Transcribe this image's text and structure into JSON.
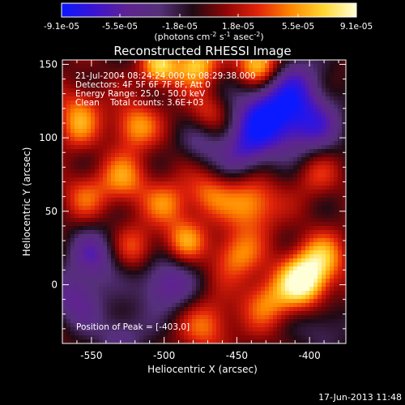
{
  "colorbar": {
    "ticks": [
      "-9.1e-05",
      "-5.5e-05",
      "-1.8e-05",
      "1.8e-05",
      "5.5e-05",
      "9.1e-05"
    ],
    "tick_values": [
      -9.1e-05,
      -5.5e-05,
      -1.8e-05,
      1.8e-05,
      5.5e-05,
      9.1e-05
    ],
    "range": [
      -9.1e-05,
      9.1e-05
    ],
    "unit": "(photons cm",
    "unit_sup1": "-2",
    "unit_mid": " s",
    "unit_sup2": "-1",
    "unit_end": " asec",
    "unit_sup3": "-2",
    "unit_close": ")",
    "colors": [
      "#0a19ff",
      "#3c14d2",
      "#5f2391",
      "#55307a",
      "#1e0a14",
      "#8c0505",
      "#e1230a",
      "#ff8700",
      "#ffd732",
      "#ffffd7"
    ]
  },
  "chart_data": {
    "type": "heatmap",
    "title": "Reconstructed RHESSI Image",
    "xlabel": "Heliocentric X (arcsec)",
    "ylabel": "Heliocentric Y (arcsec)",
    "xlim": [
      -570,
      -375
    ],
    "ylim": [
      -40,
      153
    ],
    "xticks": [
      -550,
      -500,
      -450,
      -400
    ],
    "yticks": [
      0,
      50,
      100,
      150
    ],
    "xtick_labels": [
      "-550",
      "-500",
      "-450",
      "-400"
    ],
    "ytick_labels": [
      "0",
      "50",
      "100",
      "150"
    ],
    "peak": [
      -403,
      0
    ],
    "annotations": {
      "time": "21-Jul-2004 08:24:24.000 to 08:29:38.000",
      "detectors": "Detectors: 4F 5F 6F 7F 8F, Att 0",
      "energy": "Energy Range: 25.0 - 50.0 keV",
      "clean": "Clean    Total counts: 3.6E+03",
      "peak_text": "Position of Peak = [-403,0]"
    },
    "blobs": [
      {
        "x": -405,
        "y": 2,
        "v": 9.1e-05,
        "s": 12
      },
      {
        "x": -392,
        "y": 18,
        "v": 5.5e-05,
        "s": 12
      },
      {
        "x": -440,
        "y": 55,
        "v": 6e-05,
        "s": 13
      },
      {
        "x": -450,
        "y": 20,
        "v": 5e-05,
        "s": 12
      },
      {
        "x": -430,
        "y": -12,
        "v": 4.8e-05,
        "s": 12
      },
      {
        "x": -470,
        "y": -28,
        "v": 4.5e-05,
        "s": 12
      },
      {
        "x": -485,
        "y": 30,
        "v": 5e-05,
        "s": 10
      },
      {
        "x": -470,
        "y": 62,
        "v": 4e-05,
        "s": 11
      },
      {
        "x": -498,
        "y": 55,
        "v": 4.5e-05,
        "s": 11
      },
      {
        "x": -520,
        "y": 25,
        "v": 4e-05,
        "s": 11
      },
      {
        "x": -528,
        "y": 72,
        "v": 5e-05,
        "s": 12
      },
      {
        "x": -555,
        "y": 60,
        "v": 3.5e-05,
        "s": 11
      },
      {
        "x": -520,
        "y": 108,
        "v": 5.5e-05,
        "s": 11
      },
      {
        "x": -558,
        "y": 120,
        "v": 3.8e-05,
        "s": 11
      },
      {
        "x": -560,
        "y": 105,
        "v": 3.2e-05,
        "s": 10
      },
      {
        "x": -470,
        "y": 118,
        "v": 3e-05,
        "s": 10
      },
      {
        "x": -478,
        "y": 150,
        "v": 7e-05,
        "s": 10
      },
      {
        "x": -435,
        "y": 150,
        "v": 8e-05,
        "s": 10
      },
      {
        "x": -503,
        "y": 148,
        "v": 7e-05,
        "s": 9
      },
      {
        "x": -395,
        "y": 75,
        "v": 3e-05,
        "s": 11
      },
      {
        "x": -500,
        "y": 0,
        "v": -5.5e-05,
        "s": 14
      },
      {
        "x": -548,
        "y": 20,
        "v": -5e-05,
        "s": 13
      },
      {
        "x": -560,
        "y": -10,
        "v": -5e-05,
        "s": 13
      },
      {
        "x": -430,
        "y": 115,
        "v": -8e-05,
        "s": 16
      },
      {
        "x": -400,
        "y": 110,
        "v": -6e-05,
        "s": 16
      },
      {
        "x": -445,
        "y": 90,
        "v": -5e-05,
        "s": 13
      },
      {
        "x": -410,
        "y": 140,
        "v": -4e-05,
        "s": 14
      },
      {
        "x": -530,
        "y": -35,
        "v": -4e-05,
        "s": 12
      },
      {
        "x": -390,
        "y": -30,
        "v": -3e-05,
        "s": 12
      },
      {
        "x": -475,
        "y": 95,
        "v": -3e-05,
        "s": 10
      }
    ]
  },
  "footer": {
    "timestamp": "17-Jun-2013 11:48"
  }
}
